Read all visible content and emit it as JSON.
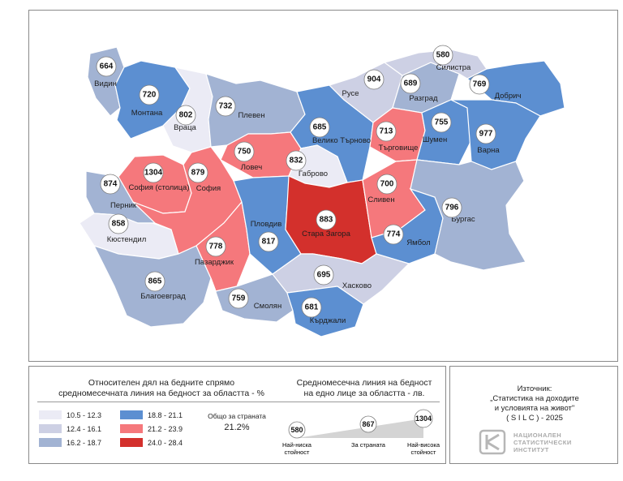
{
  "colors": {
    "c1": "#ebebf5",
    "c2": "#cdd0e4",
    "c3": "#a2b3d3",
    "c4": "#5c8fd1",
    "c5": "#f5787c",
    "c6": "#d3302c"
  },
  "legend": {
    "title_rel_line1": "Относителен дял на бедните спрямо",
    "title_rel_line2": "средномесечната линия на бедност за областта - %",
    "classes": [
      {
        "label": "10.5  -  12.3",
        "color_key": "c1"
      },
      {
        "label": "12.4  -  16.1",
        "color_key": "c2"
      },
      {
        "label": "16.2  -  18.7",
        "color_key": "c3"
      },
      {
        "label": "18.8  -  21.1",
        "color_key": "c4"
      },
      {
        "label": "21.2  -  23.9",
        "color_key": "c5"
      },
      {
        "label": "24.0  -  28.4",
        "color_key": "c6"
      }
    ],
    "country_label": "Общо за страната",
    "country_value": "21.2%",
    "title_line_line1": "Средномесечна линия на бедност",
    "title_line_line2": "на едно лице за областта - лв.",
    "scale": {
      "min": {
        "value": "580",
        "label_line1": "Най-ниска",
        "label_line2": "стойност"
      },
      "mid": {
        "value": "867",
        "label_line1": "За страната",
        "label_line2": ""
      },
      "max": {
        "value": "1304",
        "label_line1": "Най-висока",
        "label_line2": "стойност"
      }
    }
  },
  "source": {
    "line1": "Източник:",
    "line2": "„Статистика на доходите",
    "line3": "и условията на живот\"",
    "line4": "( S I L C ) - 2025",
    "org_line1": "НАЦИОНАЛЕН",
    "org_line2": "СТАТИСТИЧЕСКИ",
    "org_line3": "ИНСТИТУТ"
  },
  "regions": [
    {
      "id": "vidin",
      "name": "Видин",
      "value": "664",
      "color_key": "c3"
    },
    {
      "id": "montana",
      "name": "Монтана",
      "value": "720",
      "color_key": "c4"
    },
    {
      "id": "vratsa",
      "name": "Враца",
      "value": "802",
      "color_key": "c1"
    },
    {
      "id": "pleven",
      "name": "Плевен",
      "value": "732",
      "color_key": "c3"
    },
    {
      "id": "lovech",
      "name": "Ловеч",
      "value": "750",
      "color_key": "c5"
    },
    {
      "id": "veliko-tarnovo",
      "name": "Велико Търново",
      "value": "685",
      "color_key": "c4"
    },
    {
      "id": "gabrovo",
      "name": "Габрово",
      "value": "832",
      "color_key": "c1"
    },
    {
      "id": "ruse",
      "name": "Русе",
      "value": "904",
      "color_key": "c2"
    },
    {
      "id": "razgrad",
      "name": "Разград",
      "value": "689",
      "color_key": "c3"
    },
    {
      "id": "silistra",
      "name": "Силистра",
      "value": "580",
      "color_key": "c2"
    },
    {
      "id": "dobrich",
      "name": "Добрич",
      "value": "769",
      "color_key": "c4"
    },
    {
      "id": "targovishte",
      "name": "Търговище",
      "value": "713",
      "color_key": "c5"
    },
    {
      "id": "shumen",
      "name": "Шумен",
      "value": "755",
      "color_key": "c4"
    },
    {
      "id": "varna",
      "name": "Варна",
      "value": "977",
      "color_key": "c4"
    },
    {
      "id": "sofia-capital",
      "name": "София (столица)",
      "value": "1304",
      "color_key": "c5"
    },
    {
      "id": "sofia",
      "name": "София",
      "value": "879",
      "color_key": "c5"
    },
    {
      "id": "pernik",
      "name": "Перник",
      "value": "874",
      "color_key": "c3"
    },
    {
      "id": "kyustendil",
      "name": "Кюстендил",
      "value": "858",
      "color_key": "c1"
    },
    {
      "id": "blagoevgrad",
      "name": "Благоевград",
      "value": "865",
      "color_key": "c3"
    },
    {
      "id": "pazardzhik",
      "name": "Пазарджик",
      "value": "778",
      "color_key": "c5"
    },
    {
      "id": "plovdiv",
      "name": "Пловдив",
      "value": "817",
      "color_key": "c4"
    },
    {
      "id": "smolyan",
      "name": "Смолян",
      "value": "759",
      "color_key": "c3"
    },
    {
      "id": "stara-zagora",
      "name": "Стара Загора",
      "value": "883",
      "color_key": "c6"
    },
    {
      "id": "sliven",
      "name": "Сливен",
      "value": "700",
      "color_key": "c5"
    },
    {
      "id": "yambol",
      "name": "Ямбол",
      "value": "774",
      "color_key": "c4"
    },
    {
      "id": "burgas",
      "name": "Бургас",
      "value": "796",
      "color_key": "c3"
    },
    {
      "id": "haskovo",
      "name": "Хасково",
      "value": "695",
      "color_key": "c2"
    },
    {
      "id": "kardzhali",
      "name": "Кърджали",
      "value": "681",
      "color_key": "c4"
    }
  ]
}
